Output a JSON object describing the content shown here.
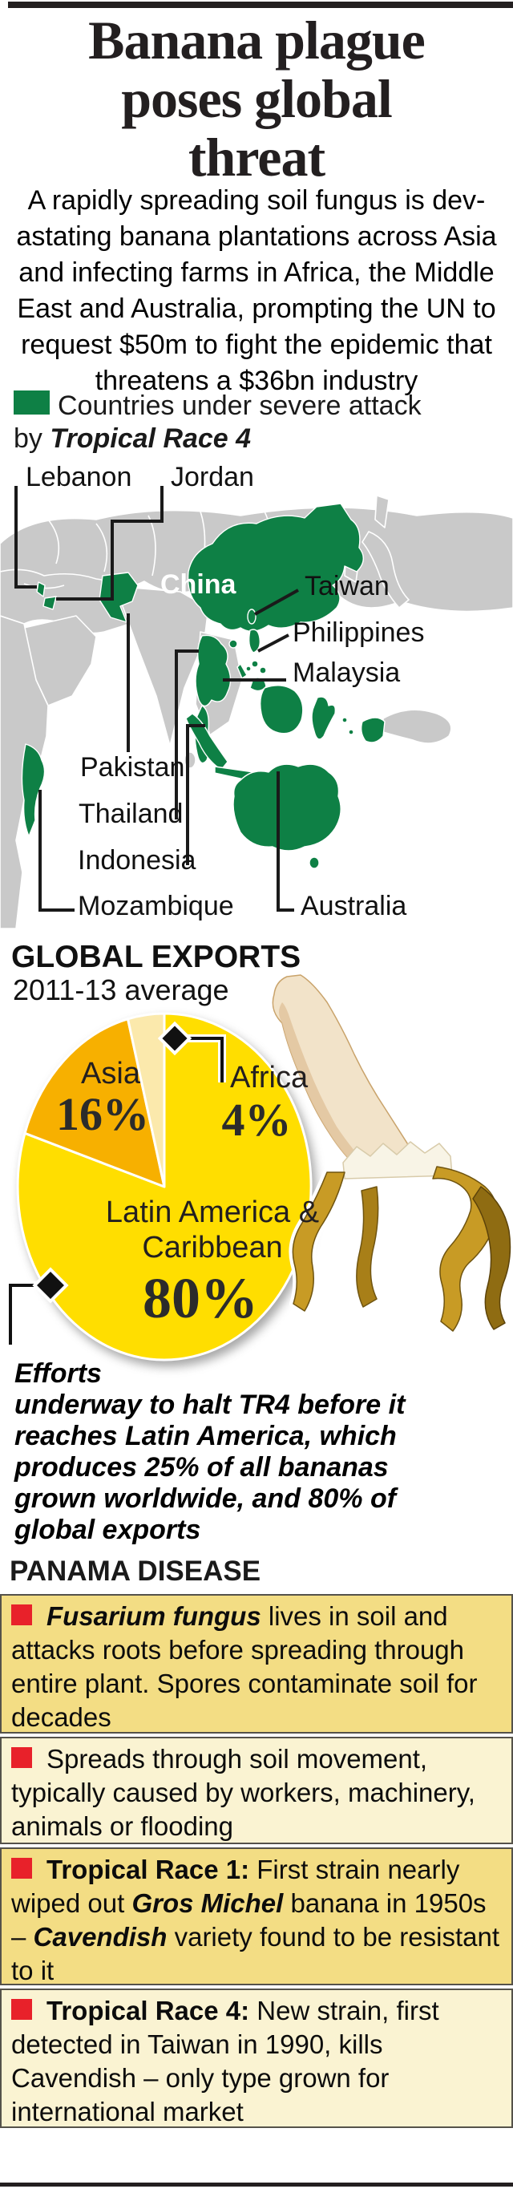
{
  "infographic": {
    "headline": "Banana plague\nposes global\nthreat",
    "intro": "A rapidly spreading soil fungus is dev-\nastating banana plantations across Asia\nand infecting farms in Africa, the Middle\nEast and Australia, prompting the UN to\nrequest $50m to fight the epidemic that\nthreatens a $36bn industry",
    "legend": {
      "swatch_color": "#0E8045",
      "line1": "Countries under severe attack",
      "line2_prefix": "by ",
      "line2_strain": "Tropical Race 4"
    },
    "map": {
      "land_color": "#C9C9C9",
      "highlight_color": "#0E8045",
      "labels": {
        "lebanon": "Lebanon",
        "jordan": "Jordan",
        "china": "China",
        "taiwan": "Taiwan",
        "philippines": "Philippines",
        "malaysia": "Malaysia",
        "pakistan": "Pakistan",
        "thailand": "Thailand",
        "indonesia": "Indonesia",
        "mozambique": "Mozambique",
        "australia": "Australia"
      }
    },
    "exports": {
      "title": "GLOBAL EXPORTS",
      "subtitle": "2011-13 average",
      "label_asia": "Asia",
      "value_asia": "16%",
      "label_africa": "Africa",
      "value_africa": "4%",
      "label_latam": "Latin America &\nCaribbean",
      "value_latam": "80%"
    },
    "annotation": "Efforts\nunderway to halt TR4 before it\nreaches Latin America, which\nproduces 25% of all bananas\ngrown worldwide, and 80% of\nglobal exports",
    "panama": {
      "title": "PANAMA DISEASE",
      "bullet_color": "#E8212A",
      "rows": [
        {
          "segments": [
            {
              "style": "bolditalic",
              "text": "Fusarium fungus"
            },
            {
              "style": "normal",
              "text": " lives in soil and attacks roots before spreading through entire plant. Spores contaminate soil for decades"
            }
          ]
        },
        {
          "segments": [
            {
              "style": "normal",
              "text": "Spreads through soil movement, typically caused by workers, machinery, animals or flooding"
            }
          ]
        },
        {
          "segments": [
            {
              "style": "bold",
              "text": "Tropical Race 1:"
            },
            {
              "style": "normal",
              "text": " First strain nearly wiped out "
            },
            {
              "style": "bolditalic",
              "text": "Gros Michel"
            },
            {
              "style": "normal",
              "text": " banana in 1950s – "
            },
            {
              "style": "bolditalic",
              "text": "Cavendish"
            },
            {
              "style": "normal",
              "text": " variety found to be resistant to it"
            }
          ]
        },
        {
          "segments": [
            {
              "style": "bold",
              "text": "Tropical Race 4:"
            },
            {
              "style": "normal",
              "text": " New strain, first detected in Taiwan in 1990, kills Cavendish – only type grown for international market"
            }
          ]
        }
      ]
    }
  },
  "chart_data": {
    "type": "pie",
    "title": "GLOBAL EXPORTS",
    "subtitle": "2011-13 average",
    "units": "% of global banana exports",
    "start_angle_deg": 0,
    "direction": "clockwise",
    "slices": [
      {
        "label": "Latin America & Caribbean",
        "value": 80,
        "color": "#FFDE00"
      },
      {
        "label": "Asia",
        "value": 16,
        "color": "#F7B000"
      },
      {
        "label": "Africa",
        "value": 4,
        "color": "#FBE9AC"
      }
    ]
  }
}
